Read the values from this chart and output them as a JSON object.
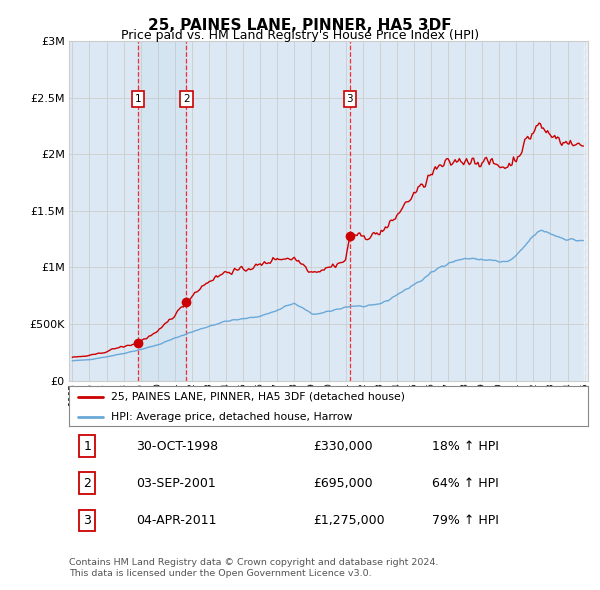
{
  "title": "25, PAINES LANE, PINNER, HA5 3DF",
  "subtitle": "Price paid vs. HM Land Registry's House Price Index (HPI)",
  "legend_line1": "25, PAINES LANE, PINNER, HA5 3DF (detached house)",
  "legend_line2": "HPI: Average price, detached house, Harrow",
  "sale1_date": "30-OCT-1998",
  "sale1_price": 330000,
  "sale1_hpi": "18% ↑ HPI",
  "sale2_date": "03-SEP-2001",
  "sale2_price": 695000,
  "sale2_hpi": "64% ↑ HPI",
  "sale3_date": "04-APR-2011",
  "sale3_price": 1275000,
  "sale3_hpi": "79% ↑ HPI",
  "footnote1": "Contains HM Land Registry data © Crown copyright and database right 2024.",
  "footnote2": "This data is licensed under the Open Government Licence v3.0.",
  "hpi_color": "#6aa8d8",
  "price_color": "#cc0000",
  "sale_marker_color": "#cc0000",
  "plot_bg_color": "#dce9f5",
  "ylim_max": 3000000,
  "x_start_year": 1995,
  "x_end_year": 2025,
  "sale1_x": 1998.83,
  "sale2_x": 2001.67,
  "sale3_x": 2011.25
}
